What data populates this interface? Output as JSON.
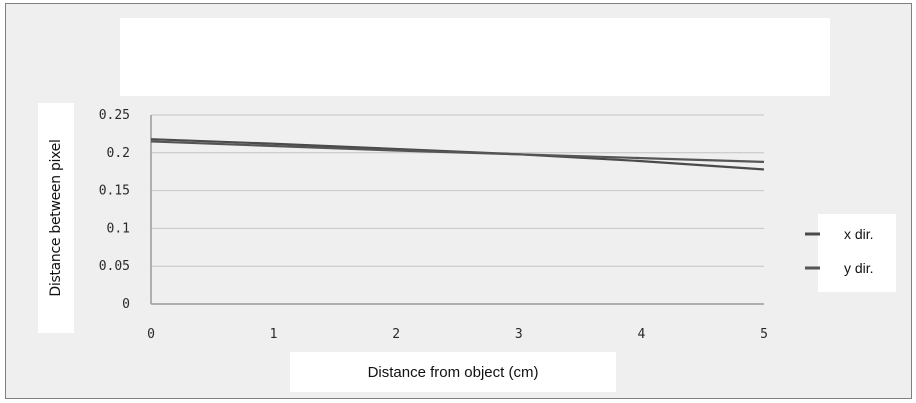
{
  "chart_data": {
    "type": "line",
    "title": "",
    "xlabel": "Distance from object (cm)",
    "ylabel": "Distance between pixel",
    "x": [
      0,
      1,
      2,
      3,
      4,
      5
    ],
    "x_ticks": [
      "0",
      "1",
      "2",
      "3",
      "4",
      "5"
    ],
    "y_ticks": [
      "0",
      "0.05",
      "0.1",
      "0.15",
      "0.2",
      "0.25"
    ],
    "y_tick_values": [
      0,
      0.05,
      0.1,
      0.15,
      0.2,
      0.25
    ],
    "xlim": [
      0,
      5
    ],
    "ylim": [
      0,
      0.25
    ],
    "grid": true,
    "legend_position": "right",
    "series": [
      {
        "name": "x dir.",
        "values": [
          0.218,
          0.212,
          0.205,
          0.198,
          0.189,
          0.178
        ],
        "color": "#4a4a4a"
      },
      {
        "name": "y dir.",
        "values": [
          0.215,
          0.209,
          0.203,
          0.198,
          0.193,
          0.188
        ],
        "color": "#555555"
      }
    ]
  }
}
